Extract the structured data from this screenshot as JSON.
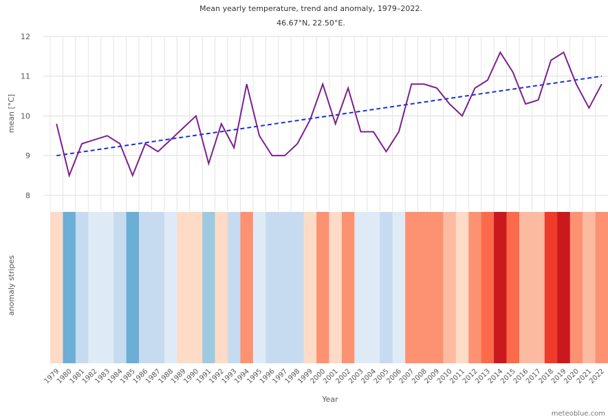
{
  "chart_data": {
    "type": "line",
    "title": "Mean yearly temperature, trend and anomaly, 1979–2022.",
    "subtitle": "46.67°N, 22.50°E.",
    "x_label": "Year",
    "y_label": "mean [°C]",
    "stripes_label": "anomaly stripes",
    "source": "meteoblue.com",
    "x": [
      1979,
      1980,
      1981,
      1982,
      1983,
      1984,
      1985,
      1986,
      1987,
      1988,
      1989,
      1990,
      1991,
      1992,
      1993,
      1994,
      1995,
      1996,
      1997,
      1998,
      1999,
      2000,
      2001,
      2002,
      2003,
      2004,
      2005,
      2006,
      2007,
      2008,
      2009,
      2010,
      2011,
      2012,
      2013,
      2014,
      2015,
      2016,
      2017,
      2018,
      2019,
      2020,
      2021,
      2022
    ],
    "series": [
      {
        "name": "mean",
        "color": "#7b1f8e",
        "values": [
          9.8,
          8.5,
          9.3,
          9.4,
          9.5,
          9.3,
          8.5,
          9.3,
          9.1,
          9.4,
          9.7,
          10.0,
          8.8,
          9.8,
          9.2,
          10.8,
          9.5,
          9.0,
          9.0,
          9.3,
          9.9,
          10.8,
          9.8,
          10.7,
          9.6,
          9.6,
          9.1,
          9.6,
          10.8,
          10.8,
          10.7,
          10.3,
          10.0,
          10.7,
          10.9,
          11.6,
          11.1,
          10.3,
          10.4,
          11.4,
          11.6,
          10.8,
          10.2,
          10.8
        ]
      }
    ],
    "trend": {
      "color": "#1a2fd6",
      "x": [
        1979,
        2022
      ],
      "values": [
        9.0,
        11.0
      ]
    },
    "stripe_colors": [
      "#fddbc7",
      "#6baed6",
      "#c6dbef",
      "#deebf7",
      "#deebf7",
      "#c6dbef",
      "#6baed6",
      "#c6dbef",
      "#c6dbef",
      "#deebf7",
      "#fddbc7",
      "#fddbc7",
      "#9ecae1",
      "#fddbc7",
      "#c6dbef",
      "#fc9272",
      "#deebf7",
      "#c6dbef",
      "#c6dbef",
      "#c6dbef",
      "#fddbc7",
      "#fc9272",
      "#fddbc7",
      "#fc9272",
      "#deebf7",
      "#deebf7",
      "#c6dbef",
      "#deebf7",
      "#fc9272",
      "#fc9272",
      "#fc9272",
      "#fcbba1",
      "#fddbc7",
      "#fc9272",
      "#fb6a4a",
      "#cb181d",
      "#fb6a4a",
      "#fcbba1",
      "#fcbba1",
      "#ef3b2c",
      "#cb181d",
      "#fc9272",
      "#fcbba1",
      "#fc9272"
    ],
    "ylim": [
      7.6,
      12
    ],
    "yticks": [
      8,
      9,
      10,
      11,
      12
    ],
    "grid": true
  }
}
